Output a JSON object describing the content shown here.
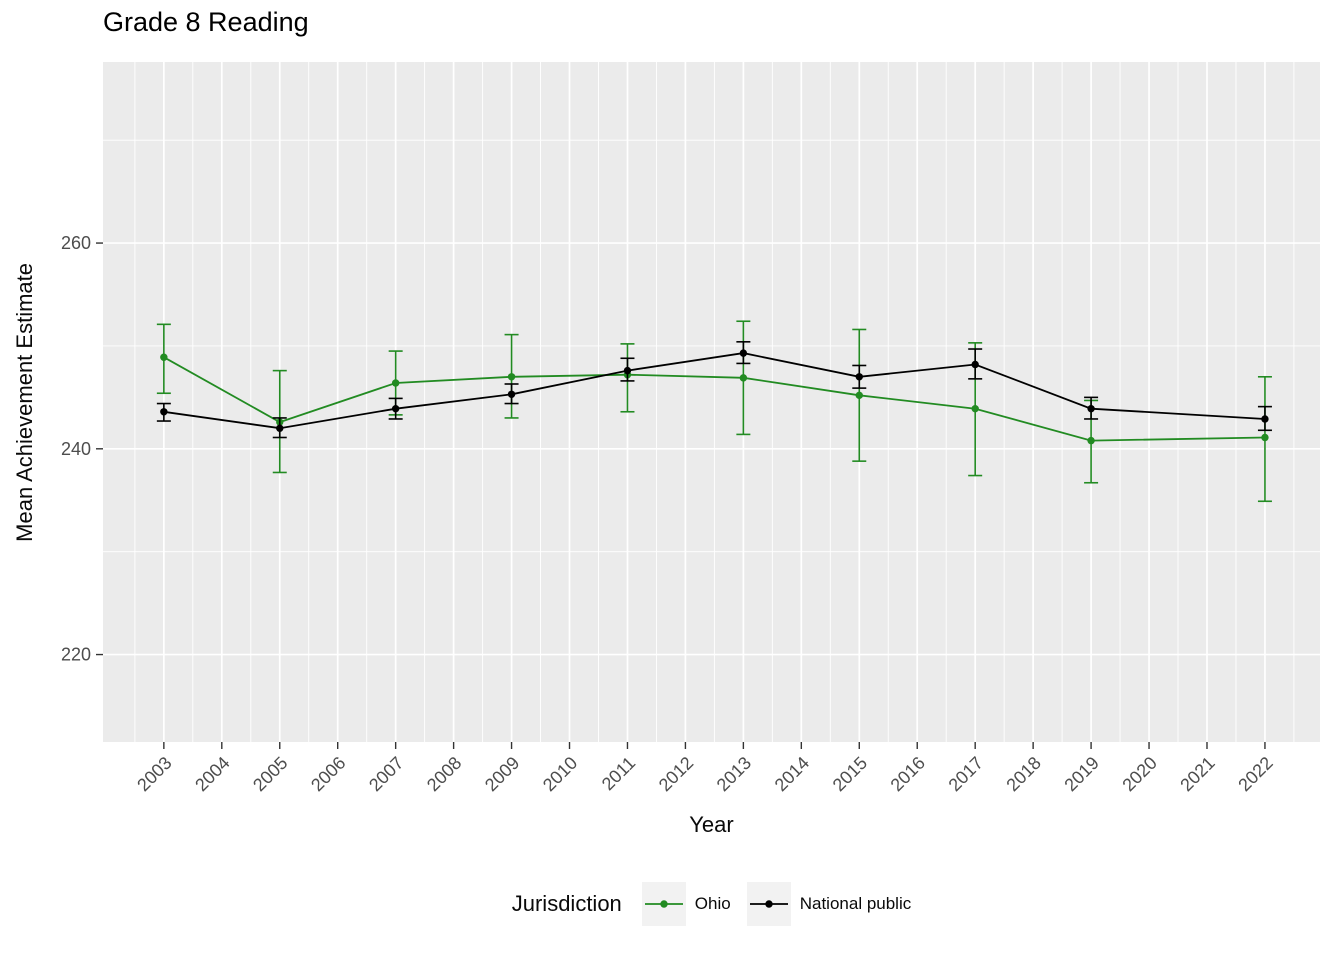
{
  "chart_data": {
    "type": "line",
    "title": "Grade 8 Reading",
    "xlabel": "Year",
    "ylabel": "Mean Achievement Estimate",
    "legend_title": "Jurisdiction",
    "legend_position": "bottom",
    "grid": true,
    "panel_color": "#EBEBEB",
    "x_ticks": [
      2003,
      2004,
      2005,
      2006,
      2007,
      2008,
      2009,
      2010,
      2011,
      2012,
      2013,
      2014,
      2015,
      2016,
      2017,
      2018,
      2019,
      2020,
      2021,
      2022
    ],
    "y_ticks": [
      220,
      240,
      260
    ],
    "xlim": [
      2002,
      2023
    ],
    "ylim": [
      211.5,
      277.6
    ],
    "x": [
      2003,
      2005,
      2007,
      2009,
      2011,
      2013,
      2015,
      2017,
      2019,
      2022
    ],
    "series": [
      {
        "name": "Ohio",
        "color": "#228B22",
        "values": [
          248.9,
          242.6,
          246.4,
          247.0,
          247.2,
          246.9,
          245.2,
          243.9,
          240.8,
          241.1
        ],
        "ci_low": [
          245.4,
          237.7,
          243.3,
          243.0,
          243.6,
          241.4,
          238.8,
          237.4,
          236.7,
          234.9
        ],
        "ci_high": [
          252.1,
          247.6,
          249.5,
          251.1,
          250.2,
          252.4,
          251.6,
          250.3,
          244.7,
          247.0
        ]
      },
      {
        "name": "National public",
        "color": "#000000",
        "values": [
          243.6,
          242.0,
          243.9,
          245.3,
          247.6,
          249.3,
          247.0,
          248.2,
          243.9,
          242.9
        ],
        "ci_low": [
          242.7,
          241.1,
          242.9,
          244.4,
          246.6,
          248.3,
          245.9,
          246.8,
          242.9,
          241.8
        ],
        "ci_high": [
          244.4,
          243.0,
          244.9,
          246.3,
          248.8,
          250.4,
          248.1,
          249.7,
          245.0,
          244.1
        ]
      }
    ]
  }
}
